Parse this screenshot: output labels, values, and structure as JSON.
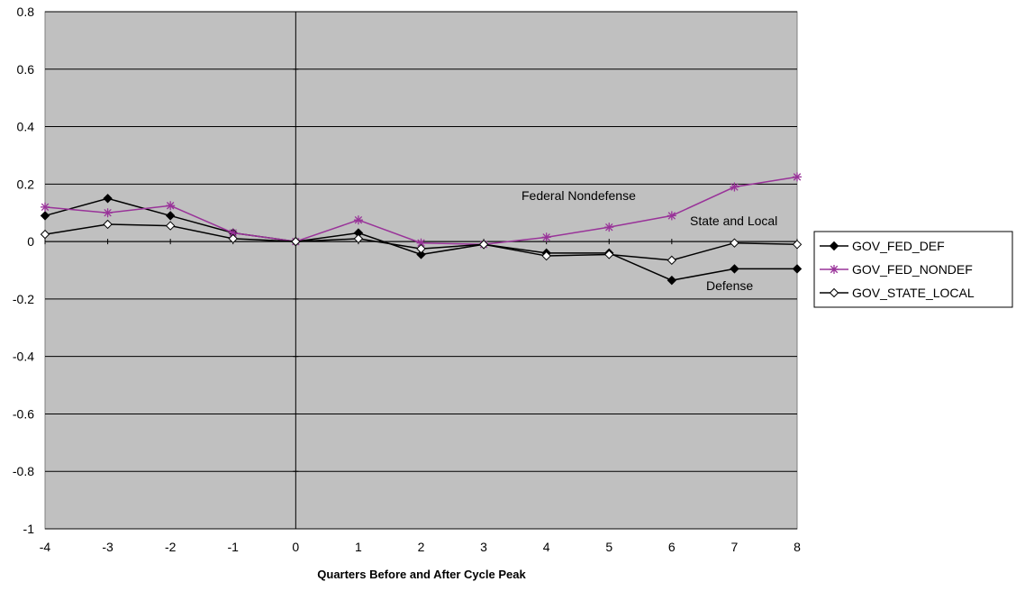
{
  "chart_data": {
    "type": "line",
    "title": "",
    "xlabel": "Quarters Before and After Cycle Peak",
    "ylabel": "",
    "x": [
      -4,
      -3,
      -2,
      -1,
      0,
      1,
      2,
      3,
      4,
      5,
      6,
      7,
      8
    ],
    "x_tick_labels": [
      "-4",
      "-3",
      "-2",
      "-1",
      "0",
      "1",
      "2",
      "3",
      "4",
      "5",
      "6",
      "7",
      "8"
    ],
    "ylim": [
      -1,
      0.8
    ],
    "y_ticks": [
      -1,
      -0.8,
      -0.6,
      -0.4,
      -0.2,
      0,
      0.2,
      0.4,
      0.6,
      0.8
    ],
    "y_tick_labels": [
      "-1",
      "-0.8",
      "-0.6",
      "-0.4",
      "-0.2",
      "0",
      "0.2",
      "0.4",
      "0.6",
      "0.8"
    ],
    "grid": true,
    "plot_background": "#c0c0c0",
    "legend_position": "right",
    "series": [
      {
        "name": "GOV_FED_DEF",
        "color": "#000000",
        "marker": "filled-diamond",
        "values": [
          0.09,
          0.15,
          0.09,
          0.03,
          0.0,
          0.03,
          -0.045,
          -0.01,
          -0.04,
          -0.04,
          -0.135,
          -0.095,
          -0.095
        ]
      },
      {
        "name": "GOV_FED_NONDEF",
        "color": "#993399",
        "marker": "asterisk",
        "values": [
          0.12,
          0.1,
          0.125,
          0.03,
          0.0,
          0.075,
          -0.005,
          -0.01,
          0.015,
          0.05,
          0.09,
          0.19,
          0.225
        ]
      },
      {
        "name": "GOV_STATE_LOCAL",
        "color": "#000000",
        "marker": "open-diamond",
        "values": [
          0.025,
          0.06,
          0.055,
          0.01,
          0.0,
          0.01,
          -0.025,
          -0.01,
          -0.05,
          -0.045,
          -0.065,
          -0.005,
          -0.01
        ]
      }
    ],
    "annotations": [
      {
        "text": "Federal Nondefense"
      },
      {
        "text": "State and Local"
      },
      {
        "text": "Defense"
      }
    ]
  }
}
